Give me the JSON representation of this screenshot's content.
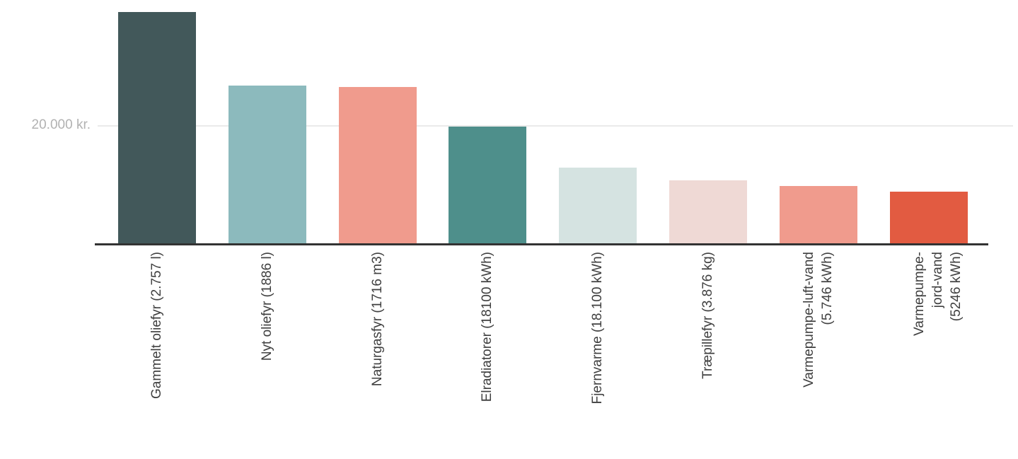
{
  "chart_data": {
    "type": "bar",
    "categories": [
      "Gammelt oliefyr (2.757 l)",
      "Nyt oliefyr (1886 l)",
      "Naturgasfyr (1716 m3)",
      "Elradiatorer (18100 kWh)",
      "Fjernvarme (18.100 kWh)",
      "Træpillefyr (3.876 kg)",
      "Varmepumpe-luft-vand\n(5.746 kWh)",
      "Varmepumpe- jord-vand\n(5246 kWh)"
    ],
    "values": [
      39200,
      26700,
      26500,
      19800,
      12800,
      10700,
      9700,
      8800
    ],
    "unit": "kr.",
    "bar_colors": [
      "#42585a",
      "#8cbabd",
      "#f09b8d",
      "#4e8f8b",
      "#d5e3e1",
      "#efd9d5",
      "#f09b8d",
      "#e25b41"
    ],
    "y_axis": {
      "tick_label": "20.000 kr.",
      "tick_value": 20000,
      "ylim": [
        0,
        41200
      ],
      "gridlines": [
        20000
      ]
    },
    "legend": "none",
    "grid": "single horizontal gridline at 20000 kr."
  },
  "colors": {
    "background": "#ffffff",
    "axis_line": "#333333",
    "gridline": "#eaeaea",
    "y_tick_text": "#b2b2b2",
    "x_label_text": "#3f3f3f"
  }
}
